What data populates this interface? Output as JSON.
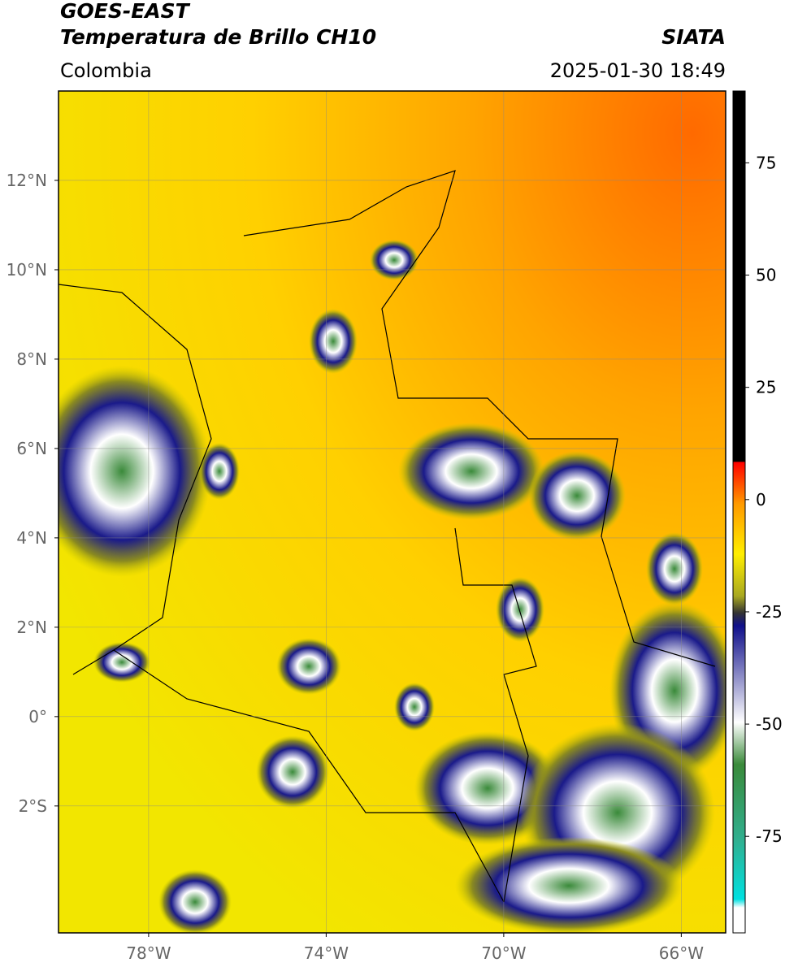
{
  "header": {
    "title": "GOES-EAST",
    "subtitle": "Temperatura de Brillo CH10",
    "region": "Colombia",
    "source": "SIATA",
    "datetime": "2025-01-30 18:49"
  },
  "map": {
    "xlim": [
      -80.03,
      -65.0
    ],
    "ylim": [
      -4.84,
      14.0
    ],
    "xticks": [
      {
        "value": -78,
        "label": "78°W"
      },
      {
        "value": -74,
        "label": "74°W"
      },
      {
        "value": -70,
        "label": "70°W"
      },
      {
        "value": -66,
        "label": "66°W"
      }
    ],
    "yticks": [
      {
        "value": 12,
        "label": "12°N"
      },
      {
        "value": 10,
        "label": "10°N"
      },
      {
        "value": 8,
        "label": "8°N"
      },
      {
        "value": 6,
        "label": "6°N"
      },
      {
        "value": 4,
        "label": "4°N"
      },
      {
        "value": 2,
        "label": "2°N"
      },
      {
        "value": 0,
        "label": "0°"
      },
      {
        "value": -2,
        "label": "2°S"
      }
    ],
    "grid": true
  },
  "colorbar": {
    "lim": [
      -96.5,
      91
    ],
    "ticks": [
      75,
      50,
      25,
      0,
      -25,
      -50,
      -75
    ]
  }
}
